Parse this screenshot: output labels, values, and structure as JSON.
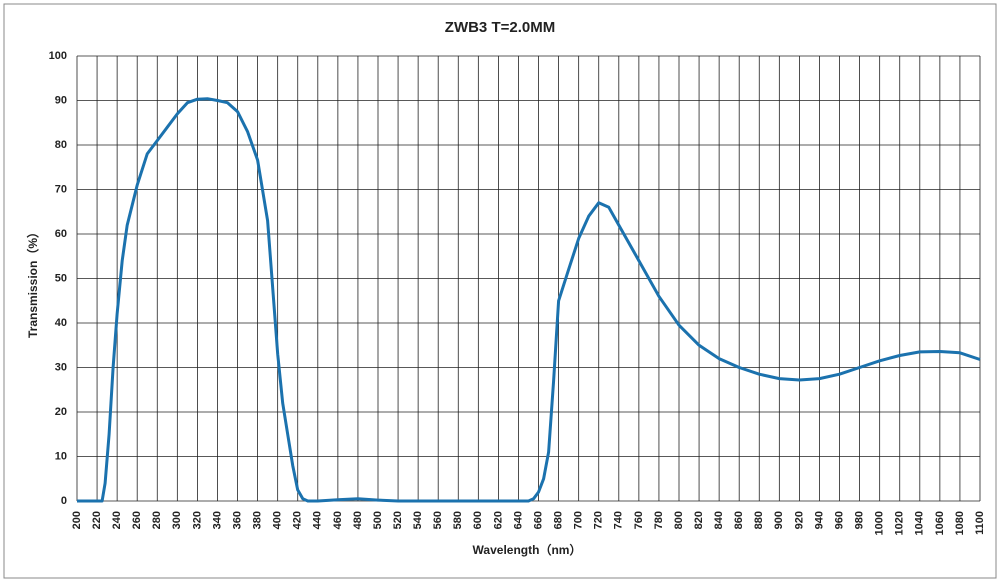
{
  "chart_data": {
    "type": "line",
    "title": "ZWB3 T=2.0MM",
    "x_label": "Wavelength（nm）",
    "y_label": "Transmission（%）",
    "x": [
      200,
      210,
      220,
      225,
      228,
      232,
      236,
      240,
      245,
      250,
      260,
      270,
      280,
      290,
      300,
      310,
      320,
      330,
      340,
      350,
      360,
      370,
      380,
      390,
      400,
      405,
      410,
      415,
      420,
      425,
      430,
      440,
      460,
      480,
      500,
      520,
      560,
      600,
      640,
      650,
      655,
      660,
      665,
      670,
      675,
      680,
      690,
      700,
      710,
      720,
      730,
      740,
      760,
      780,
      800,
      820,
      840,
      860,
      880,
      900,
      920,
      940,
      960,
      980,
      1000,
      1020,
      1040,
      1060,
      1080,
      1100
    ],
    "series": [
      {
        "name": "ZWB3",
        "color": "#1b72ae",
        "values": [
          0,
          0,
          0,
          0,
          4,
          15,
          30,
          42,
          54,
          62,
          71,
          78,
          81,
          84,
          87,
          89.5,
          90.3,
          90.4,
          90,
          89.5,
          87.5,
          83,
          76.6,
          63,
          33,
          22,
          15,
          8,
          2.5,
          0.5,
          0,
          0,
          0.3,
          0.5,
          0.2,
          0,
          0,
          0,
          0,
          0,
          0.5,
          2,
          5,
          11,
          27,
          45,
          52,
          59,
          64,
          67,
          66,
          62,
          54,
          46,
          39.5,
          35,
          32,
          30,
          28.5,
          27.5,
          27.2,
          27.5,
          28.5,
          30,
          31.5,
          32.7,
          33.5,
          33.6,
          33.3,
          31.8
        ]
      }
    ],
    "xlim": [
      200,
      1100
    ],
    "ylim": [
      0,
      100
    ],
    "xticks": [
      200,
      220,
      240,
      260,
      280,
      300,
      320,
      340,
      360,
      380,
      400,
      420,
      440,
      460,
      480,
      500,
      520,
      540,
      560,
      580,
      600,
      620,
      640,
      660,
      680,
      700,
      720,
      740,
      760,
      780,
      800,
      820,
      840,
      860,
      880,
      900,
      920,
      940,
      960,
      980,
      1000,
      1020,
      1040,
      1060,
      1080,
      1100
    ],
    "yticks": [
      0,
      10,
      20,
      30,
      40,
      50,
      60,
      70,
      80,
      90,
      100
    ],
    "grid": true
  }
}
